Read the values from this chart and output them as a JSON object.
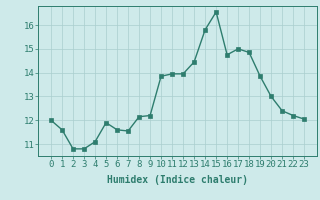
{
  "xlabel": "Humidex (Indice chaleur)",
  "x": [
    0,
    1,
    2,
    3,
    4,
    5,
    6,
    7,
    8,
    9,
    10,
    11,
    12,
    13,
    14,
    15,
    16,
    17,
    18,
    19,
    20,
    21,
    22,
    23
  ],
  "y": [
    12.0,
    11.6,
    10.8,
    10.8,
    11.1,
    11.9,
    11.6,
    11.55,
    12.15,
    12.2,
    13.85,
    13.95,
    13.95,
    14.45,
    15.8,
    16.55,
    14.75,
    15.0,
    14.85,
    13.85,
    13.0,
    12.4,
    12.2,
    12.05
  ],
  "line_color": "#2e7d6e",
  "marker": "s",
  "markersize": 2.5,
  "linewidth": 1.0,
  "background_color": "#ceeaea",
  "grid_color": "#aacece",
  "ylim": [
    10.5,
    16.8
  ],
  "yticks": [
    11,
    12,
    13,
    14,
    15,
    16
  ],
  "xticks": [
    0,
    1,
    2,
    3,
    4,
    5,
    6,
    7,
    8,
    9,
    10,
    11,
    12,
    13,
    14,
    15,
    16,
    17,
    18,
    19,
    20,
    21,
    22,
    23
  ],
  "xlabel_fontsize": 7,
  "tick_fontsize": 6.5,
  "tick_color": "#2e7d6e",
  "axis_color": "#2e7d6e"
}
